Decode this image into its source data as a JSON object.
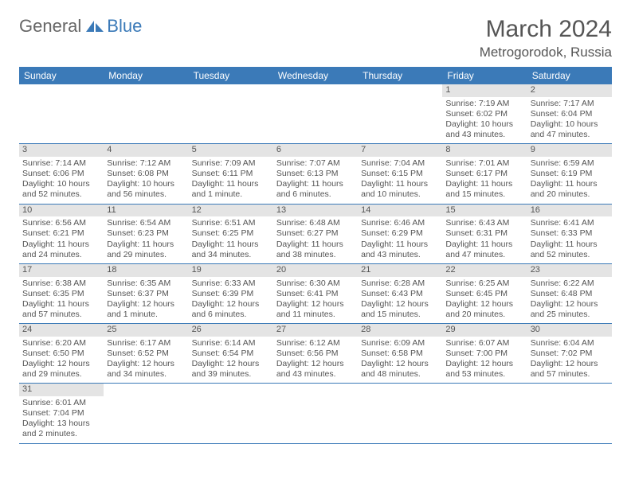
{
  "logo": {
    "text_general": "General",
    "text_blue": "Blue",
    "icon_color": "#3b7ab8"
  },
  "title": "March 2024",
  "location": "Metrogorodok, Russia",
  "colors": {
    "header_bar": "#3b7ab8",
    "daynum_bg": "#e4e4e4",
    "text": "#555555",
    "row_border": "#3b7ab8"
  },
  "fonts": {
    "title_size": 30,
    "location_size": 17,
    "weekday_size": 12,
    "body_size": 10.5
  },
  "weekdays": [
    "Sunday",
    "Monday",
    "Tuesday",
    "Wednesday",
    "Thursday",
    "Friday",
    "Saturday"
  ],
  "weeks": [
    [
      null,
      null,
      null,
      null,
      null,
      {
        "num": "1",
        "sunrise": "7:19 AM",
        "sunset": "6:02 PM",
        "daylight": "10 hours and 43 minutes."
      },
      {
        "num": "2",
        "sunrise": "7:17 AM",
        "sunset": "6:04 PM",
        "daylight": "10 hours and 47 minutes."
      }
    ],
    [
      {
        "num": "3",
        "sunrise": "7:14 AM",
        "sunset": "6:06 PM",
        "daylight": "10 hours and 52 minutes."
      },
      {
        "num": "4",
        "sunrise": "7:12 AM",
        "sunset": "6:08 PM",
        "daylight": "10 hours and 56 minutes."
      },
      {
        "num": "5",
        "sunrise": "7:09 AM",
        "sunset": "6:11 PM",
        "daylight": "11 hours and 1 minute."
      },
      {
        "num": "6",
        "sunrise": "7:07 AM",
        "sunset": "6:13 PM",
        "daylight": "11 hours and 6 minutes."
      },
      {
        "num": "7",
        "sunrise": "7:04 AM",
        "sunset": "6:15 PM",
        "daylight": "11 hours and 10 minutes."
      },
      {
        "num": "8",
        "sunrise": "7:01 AM",
        "sunset": "6:17 PM",
        "daylight": "11 hours and 15 minutes."
      },
      {
        "num": "9",
        "sunrise": "6:59 AM",
        "sunset": "6:19 PM",
        "daylight": "11 hours and 20 minutes."
      }
    ],
    [
      {
        "num": "10",
        "sunrise": "6:56 AM",
        "sunset": "6:21 PM",
        "daylight": "11 hours and 24 minutes."
      },
      {
        "num": "11",
        "sunrise": "6:54 AM",
        "sunset": "6:23 PM",
        "daylight": "11 hours and 29 minutes."
      },
      {
        "num": "12",
        "sunrise": "6:51 AM",
        "sunset": "6:25 PM",
        "daylight": "11 hours and 34 minutes."
      },
      {
        "num": "13",
        "sunrise": "6:48 AM",
        "sunset": "6:27 PM",
        "daylight": "11 hours and 38 minutes."
      },
      {
        "num": "14",
        "sunrise": "6:46 AM",
        "sunset": "6:29 PM",
        "daylight": "11 hours and 43 minutes."
      },
      {
        "num": "15",
        "sunrise": "6:43 AM",
        "sunset": "6:31 PM",
        "daylight": "11 hours and 47 minutes."
      },
      {
        "num": "16",
        "sunrise": "6:41 AM",
        "sunset": "6:33 PM",
        "daylight": "11 hours and 52 minutes."
      }
    ],
    [
      {
        "num": "17",
        "sunrise": "6:38 AM",
        "sunset": "6:35 PM",
        "daylight": "11 hours and 57 minutes."
      },
      {
        "num": "18",
        "sunrise": "6:35 AM",
        "sunset": "6:37 PM",
        "daylight": "12 hours and 1 minute."
      },
      {
        "num": "19",
        "sunrise": "6:33 AM",
        "sunset": "6:39 PM",
        "daylight": "12 hours and 6 minutes."
      },
      {
        "num": "20",
        "sunrise": "6:30 AM",
        "sunset": "6:41 PM",
        "daylight": "12 hours and 11 minutes."
      },
      {
        "num": "21",
        "sunrise": "6:28 AM",
        "sunset": "6:43 PM",
        "daylight": "12 hours and 15 minutes."
      },
      {
        "num": "22",
        "sunrise": "6:25 AM",
        "sunset": "6:45 PM",
        "daylight": "12 hours and 20 minutes."
      },
      {
        "num": "23",
        "sunrise": "6:22 AM",
        "sunset": "6:48 PM",
        "daylight": "12 hours and 25 minutes."
      }
    ],
    [
      {
        "num": "24",
        "sunrise": "6:20 AM",
        "sunset": "6:50 PM",
        "daylight": "12 hours and 29 minutes."
      },
      {
        "num": "25",
        "sunrise": "6:17 AM",
        "sunset": "6:52 PM",
        "daylight": "12 hours and 34 minutes."
      },
      {
        "num": "26",
        "sunrise": "6:14 AM",
        "sunset": "6:54 PM",
        "daylight": "12 hours and 39 minutes."
      },
      {
        "num": "27",
        "sunrise": "6:12 AM",
        "sunset": "6:56 PM",
        "daylight": "12 hours and 43 minutes."
      },
      {
        "num": "28",
        "sunrise": "6:09 AM",
        "sunset": "6:58 PM",
        "daylight": "12 hours and 48 minutes."
      },
      {
        "num": "29",
        "sunrise": "6:07 AM",
        "sunset": "7:00 PM",
        "daylight": "12 hours and 53 minutes."
      },
      {
        "num": "30",
        "sunrise": "6:04 AM",
        "sunset": "7:02 PM",
        "daylight": "12 hours and 57 minutes."
      }
    ],
    [
      {
        "num": "31",
        "sunrise": "6:01 AM",
        "sunset": "7:04 PM",
        "daylight": "13 hours and 2 minutes."
      },
      null,
      null,
      null,
      null,
      null,
      null
    ]
  ]
}
